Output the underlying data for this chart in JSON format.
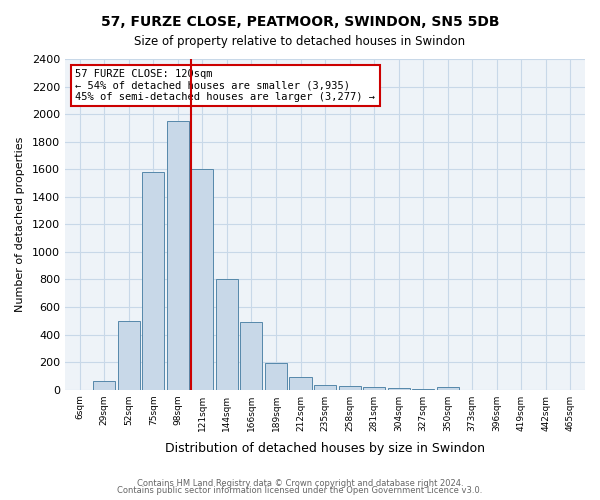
{
  "title1": "57, FURZE CLOSE, PEATMOOR, SWINDON, SN5 5DB",
  "title2": "Size of property relative to detached houses in Swindon",
  "xlabel": "Distribution of detached houses by size in Swindon",
  "ylabel": "Number of detached properties",
  "categories": [
    "6sqm",
    "29sqm",
    "52sqm",
    "75sqm",
    "98sqm",
    "121sqm",
    "144sqm",
    "166sqm",
    "189sqm",
    "212sqm",
    "235sqm",
    "258sqm",
    "281sqm",
    "304sqm",
    "327sqm",
    "350sqm",
    "373sqm",
    "396sqm",
    "419sqm",
    "442sqm",
    "465sqm"
  ],
  "values": [
    0,
    62,
    500,
    1580,
    1950,
    1600,
    800,
    490,
    195,
    90,
    35,
    30,
    22,
    10,
    5,
    18,
    0,
    0,
    0,
    0,
    0
  ],
  "bar_color": "#c8d8e8",
  "bar_edge_color": "#5588aa",
  "vline_x": 9,
  "vline_color": "#cc0000",
  "annotation_line1": "57 FURZE CLOSE: 120sqm",
  "annotation_line2": "← 54% of detached houses are smaller (3,935)",
  "annotation_line3": "45% of semi-detached houses are larger (3,277) →",
  "annotation_box_color": "#cc0000",
  "ylim": [
    0,
    2400
  ],
  "yticks": [
    0,
    200,
    400,
    600,
    800,
    1000,
    1200,
    1400,
    1600,
    1800,
    2000,
    2200,
    2400
  ],
  "grid_color": "#c8d8e8",
  "footer1": "Contains HM Land Registry data © Crown copyright and database right 2024.",
  "footer2": "Contains public sector information licensed under the Open Government Licence v3.0.",
  "bg_color": "#ffffff"
}
